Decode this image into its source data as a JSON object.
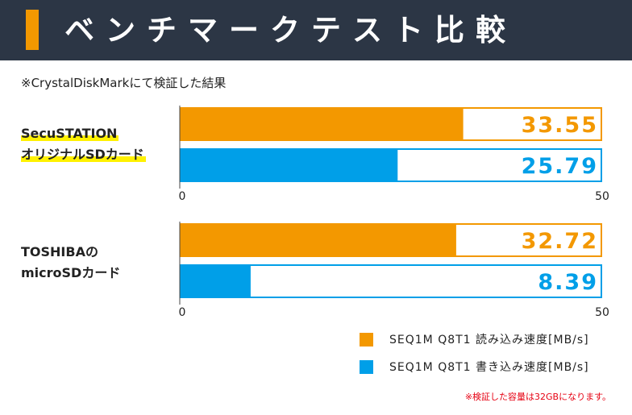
{
  "header": {
    "title": "ベンチマークテスト比較"
  },
  "note": "※CrystalDiskMarkにて検証した結果",
  "groups": [
    {
      "label_line1": "SecuSTATION",
      "label_line2": "オリジナルSDカード"
    },
    {
      "label_line1": "TOSHIBAの",
      "label_line2": "microSDカード"
    }
  ],
  "legend": [
    {
      "label": "SEQ1M Q8T1 読み込み速度[MB/s]",
      "color": "#f39800"
    },
    {
      "label": "SEQ1M Q8T1 書き込み速度[MB/s]",
      "color": "#009fe8"
    }
  ],
  "footnote": "※検証した容量は32GBになります。",
  "colors": {
    "header_bg": "#2c3645",
    "accent": "#f39800",
    "read": "#f39800",
    "write": "#009fe8"
  },
  "chart_data": [
    {
      "type": "bar",
      "orientation": "horizontal",
      "categories": [
        "SecuSTATION オリジナルSDカード"
      ],
      "series": [
        {
          "name": "SEQ1M Q8T1 読み込み速度[MB/s]",
          "values": [
            33.55
          ],
          "labels": [
            "33.55"
          ]
        },
        {
          "name": "SEQ1M Q8T1 書き込み速度[MB/s]",
          "values": [
            25.79
          ],
          "labels": [
            "25.79"
          ]
        }
      ],
      "xlim": [
        0,
        50
      ],
      "ticks": [
        "0",
        "50"
      ]
    },
    {
      "type": "bar",
      "orientation": "horizontal",
      "categories": [
        "TOSHIBAの microSDカード"
      ],
      "series": [
        {
          "name": "SEQ1M Q8T1 読み込み速度[MB/s]",
          "values": [
            32.72
          ],
          "labels": [
            "32.72"
          ]
        },
        {
          "name": "SEQ1M Q8T1 書き込み速度[MB/s]",
          "values": [
            8.39
          ],
          "labels": [
            "8.39"
          ]
        }
      ],
      "xlim": [
        0,
        50
      ],
      "ticks": [
        "0",
        "50"
      ]
    }
  ]
}
